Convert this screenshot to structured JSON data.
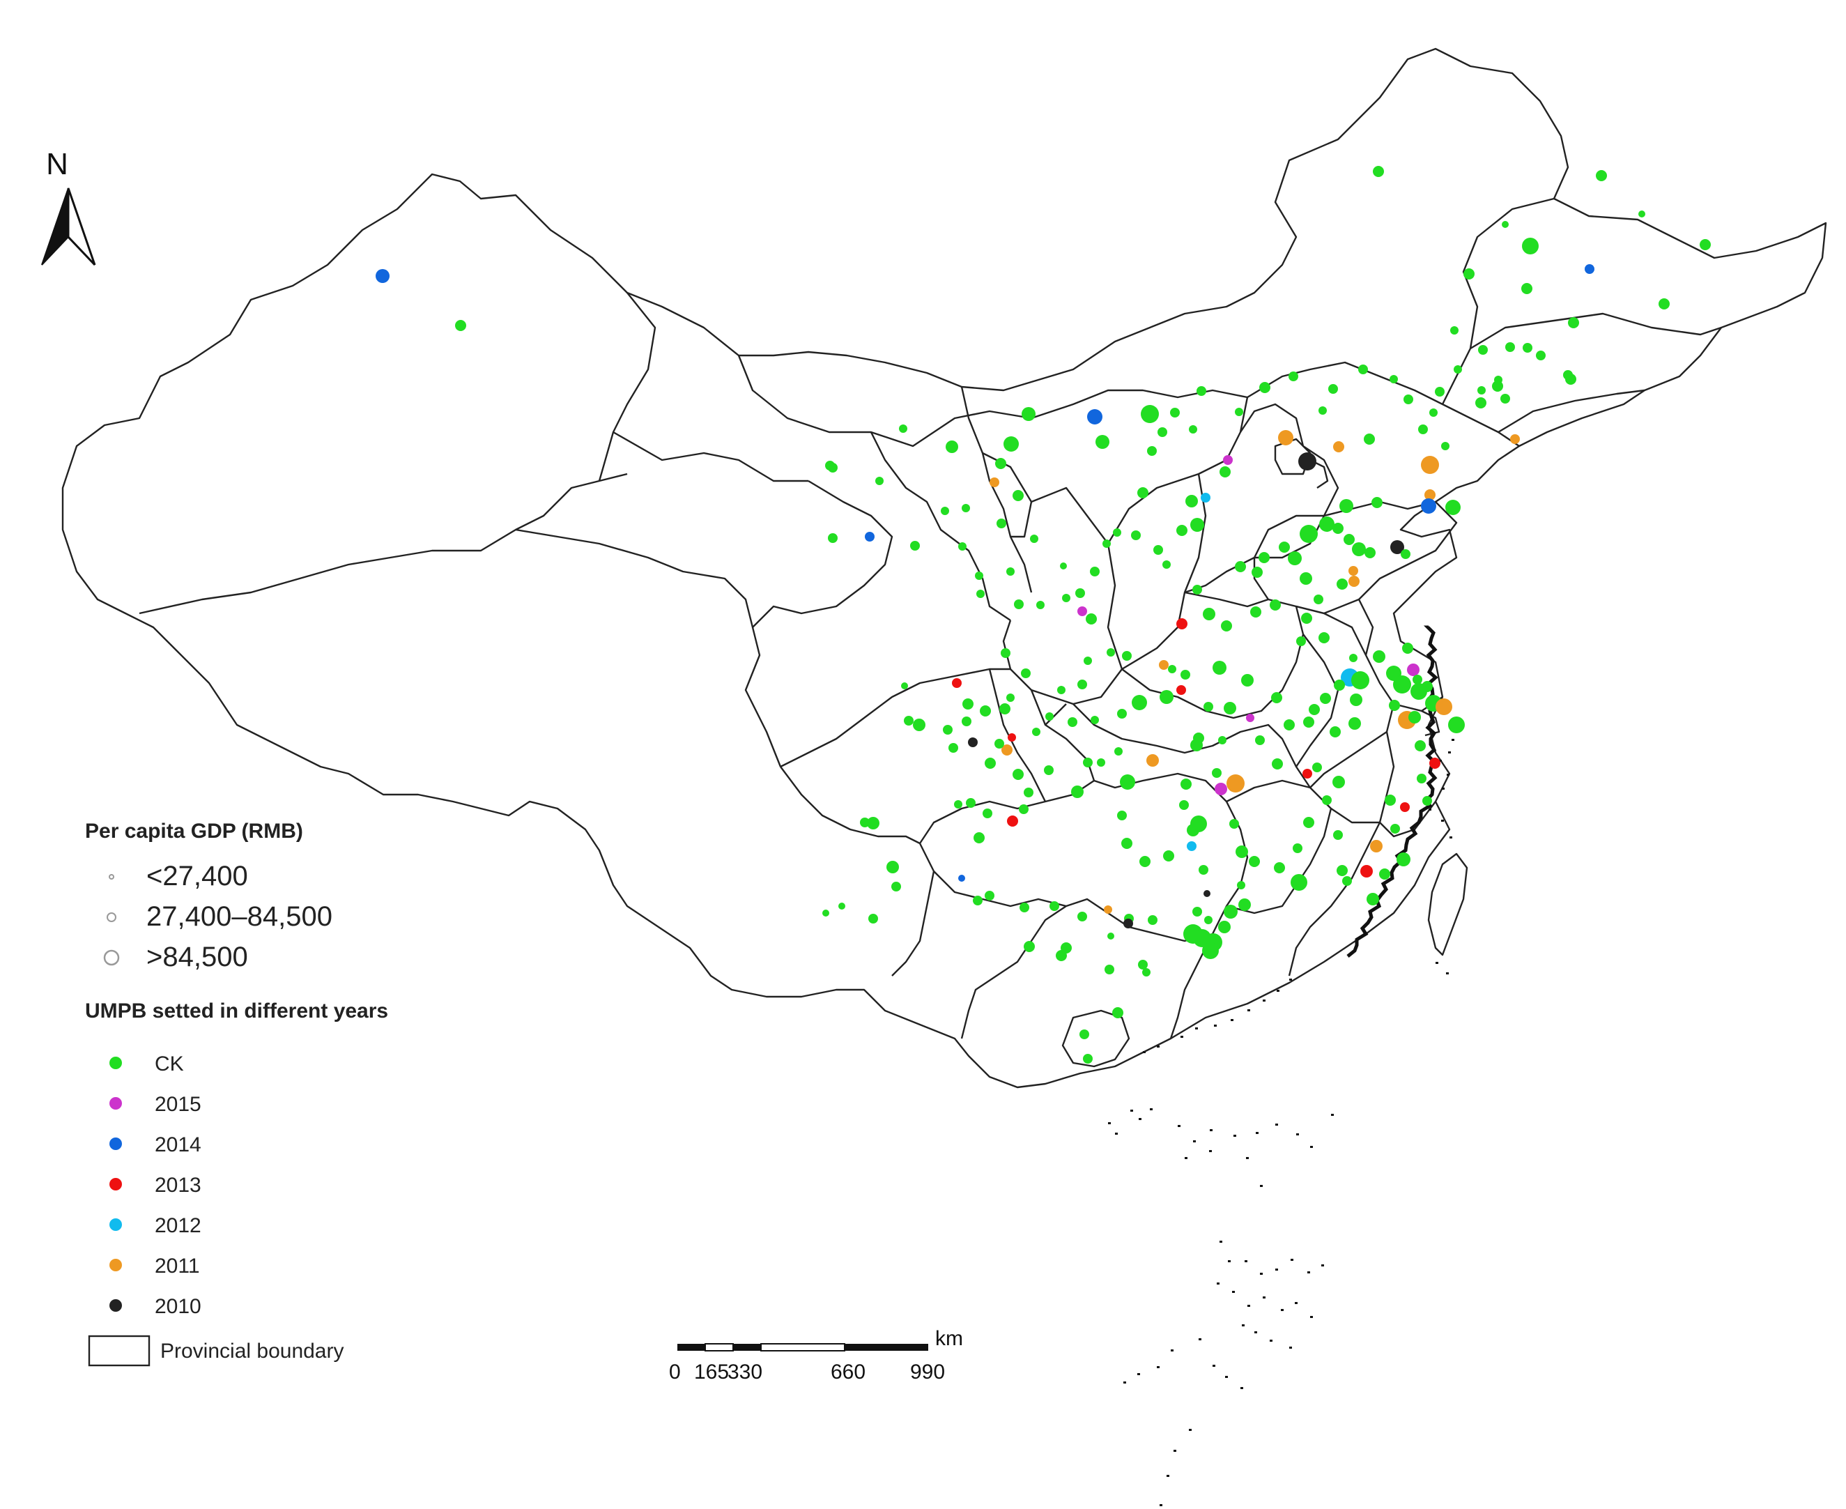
{
  "north_arrow": {
    "label": "N"
  },
  "legend": {
    "gdp_title": "Per capita GDP (RMB)",
    "gdp_classes": [
      {
        "label": "<27,400",
        "size_class": "small"
      },
      {
        "label": "27,400–84,500",
        "size_class": "medium"
      },
      {
        "label": ">84,500",
        "size_class": "large"
      }
    ],
    "year_title": "UMPB setted in different years",
    "year_classes": [
      {
        "label": "CK",
        "color": "#22dd22"
      },
      {
        "label": "2015",
        "color": "#cc33cc"
      },
      {
        "label": "2014",
        "color": "#1166dd"
      },
      {
        "label": "2013",
        "color": "#ee1111"
      },
      {
        "label": "2012",
        "color": "#11bbee"
      },
      {
        "label": "2011",
        "color": "#ee9922"
      },
      {
        "label": "2010",
        "color": "#222222"
      }
    ],
    "boundary_label": "Provincial boundary"
  },
  "scale_bar": {
    "unit": "km",
    "ticks": [
      "0",
      "165",
      "330",
      "660",
      "990"
    ]
  },
  "colors": {
    "boundary": "#222222",
    "ck": "#22dd22",
    "y2015": "#cc33cc",
    "y2014": "#1166dd",
    "y2013": "#ee1111",
    "y2012": "#11bbee",
    "y2011": "#ee9922",
    "y2010": "#222222"
  }
}
